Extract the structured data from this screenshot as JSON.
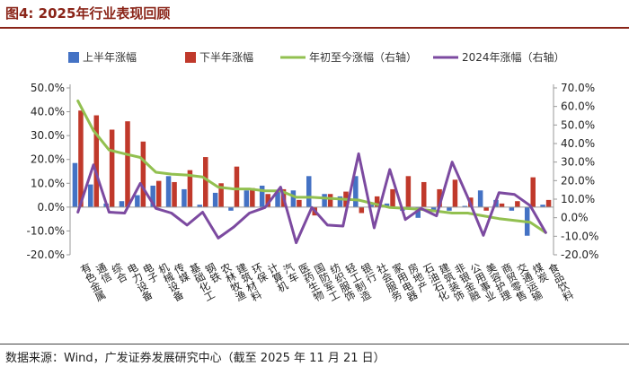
{
  "figure": {
    "title": "图4:  2025年行业表现回顾",
    "source": "数据来源：Wind，广发证券发展研究中心（截至 2025 年 11 月 21 日）"
  },
  "colors": {
    "bar_h1": "#4472c4",
    "bar_h2": "#c0392b",
    "line_ytd": "#92c050",
    "line_2024": "#7c4aa0",
    "title": "#8a2418",
    "axis": "#999999"
  },
  "chart_data": {
    "type": "bar",
    "grid": false,
    "legend_position": "top",
    "categories": [
      "有色金属",
      "通信",
      "综合",
      "电力设备",
      "电子",
      "机械设备",
      "传媒",
      "基础化工",
      "钢铁",
      "农林牧渔",
      "建筑材料",
      "环保",
      "计算机",
      "汽车",
      "医药生物",
      "国防军工",
      "纺织服饰",
      "轻工制造",
      "银行",
      "社会服务",
      "家用电器",
      "房地产",
      "石油石化",
      "建筑装饰",
      "非银金融",
      "公用事业",
      "美容护理",
      "商贸零售",
      "交通运输",
      "煤炭",
      "食品饮料"
    ],
    "left_axis": {
      "ylim": [
        -20,
        50
      ],
      "ticks": [
        50,
        40,
        30,
        20,
        10,
        0,
        -10,
        -20
      ],
      "tick_labels": [
        "50.0%",
        "40.0%",
        "30.0%",
        "20.0%",
        "10.0%",
        "0.0%",
        "-10.0%",
        "-20.0%"
      ]
    },
    "right_axis": {
      "ylim": [
        -20,
        70
      ],
      "ticks": [
        70,
        60,
        50,
        40,
        30,
        20,
        10,
        0,
        -10,
        -20
      ],
      "tick_labels": [
        "70.0%",
        "60.0%",
        "50.0%",
        "40.0%",
        "30.0%",
        "20.0%",
        "10.0%",
        "0.0%",
        "-10.0%",
        "-20.0%"
      ]
    },
    "series": [
      {
        "name": "上半年涨幅",
        "kind": "bar",
        "axis": "left",
        "color": "#4472c4",
        "values": [
          18.5,
          9.5,
          1.5,
          2.5,
          5.0,
          9.0,
          13.0,
          7.5,
          1.0,
          6.0,
          -1.5,
          7.0,
          9.0,
          7.0,
          7.0,
          13.0,
          5.5,
          4.5,
          13.0,
          1.0,
          1.5,
          -1.5,
          -4.5,
          -2.0,
          -1.5,
          0.5,
          7.0,
          3.0,
          -1.5,
          -12.0,
          1.0
        ]
      },
      {
        "name": "下半年涨幅",
        "kind": "bar",
        "axis": "left",
        "color": "#c0392b",
        "values": [
          40.5,
          38.5,
          32.5,
          36.0,
          27.5,
          11.0,
          10.5,
          15.5,
          21.0,
          10.0,
          17.0,
          8.0,
          5.5,
          7.5,
          3.0,
          -3.5,
          5.5,
          6.5,
          -2.5,
          4.5,
          7.5,
          13.0,
          10.5,
          7.5,
          11.5,
          4.0,
          -1.5,
          1.5,
          2.5,
          12.5,
          3.0
        ]
      },
      {
        "name": "年初至今涨幅（右轴）",
        "kind": "line",
        "axis": "right",
        "color": "#92c050",
        "values": [
          63.0,
          47.0,
          36.5,
          34.5,
          32.5,
          24.5,
          23.5,
          23.0,
          22.0,
          16.5,
          15.5,
          15.5,
          14.5,
          14.5,
          11.0,
          11.0,
          10.5,
          10.0,
          9.5,
          7.5,
          5.5,
          5.0,
          4.5,
          3.5,
          2.5,
          2.5,
          1.0,
          -0.5,
          -1.5,
          -2.5,
          -8.0
        ]
      },
      {
        "name": "2024年涨幅（右轴）",
        "kind": "line",
        "axis": "right",
        "color": "#7c4aa0",
        "values": [
          3.0,
          28.5,
          3.0,
          2.5,
          18.5,
          5.0,
          2.5,
          -4.0,
          3.0,
          -11.0,
          -5.0,
          2.5,
          5.5,
          16.5,
          -13.5,
          5.5,
          -4.0,
          -4.5,
          34.5,
          -5.5,
          26.0,
          -1.0,
          5.0,
          1.0,
          30.0,
          11.0,
          -9.5,
          13.5,
          12.5,
          6.5,
          -8.0
        ]
      }
    ]
  }
}
